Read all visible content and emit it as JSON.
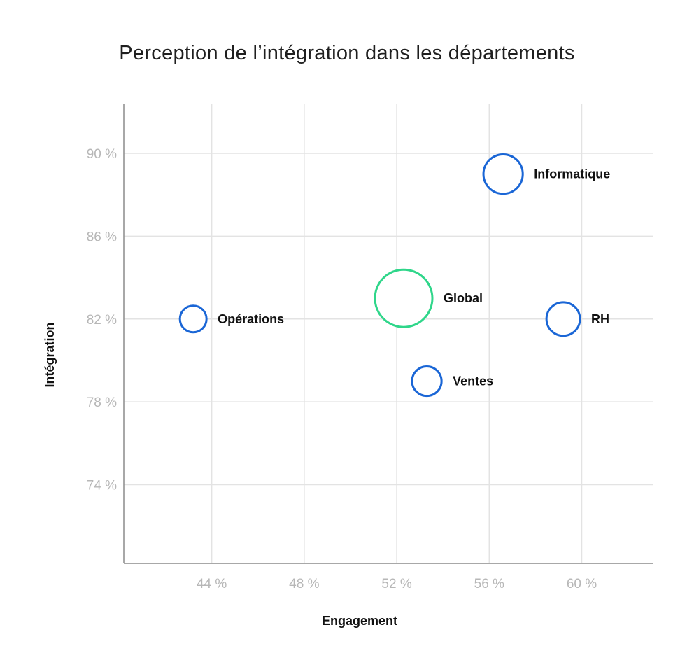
{
  "chart_data": {
    "type": "scatter",
    "title": "Perception de l’intégration dans les départements",
    "xlabel": "Engagement",
    "ylabel": "Intégration",
    "xlim": [
      40.2,
      63.1
    ],
    "ylim": [
      70.2,
      92.4
    ],
    "x_ticks": [
      44,
      48,
      52,
      56,
      60
    ],
    "x_tick_labels": [
      "44 %",
      "48 %",
      "52 %",
      "56 %",
      "60 %"
    ],
    "y_ticks": [
      74,
      78,
      82,
      86,
      90
    ],
    "y_tick_labels": [
      "74 %",
      "78 %",
      "82 %",
      "86 %",
      "90 %"
    ],
    "grid": true,
    "points": [
      {
        "label": "Informatique",
        "x": 56.6,
        "y": 89.0,
        "size": 2,
        "color": "#1a66d6"
      },
      {
        "label": "Global",
        "x": 52.3,
        "y": 83.0,
        "size": 4,
        "color": "#2fd68a"
      },
      {
        "label": "Opérations",
        "x": 43.2,
        "y": 82.0,
        "size": 1,
        "color": "#1a66d6"
      },
      {
        "label": "RH",
        "x": 59.2,
        "y": 82.0,
        "size": 1.5,
        "color": "#1a66d6"
      },
      {
        "label": "Ventes",
        "x": 53.3,
        "y": 79.0,
        "size": 1.2,
        "color": "#1a66d6"
      }
    ]
  }
}
